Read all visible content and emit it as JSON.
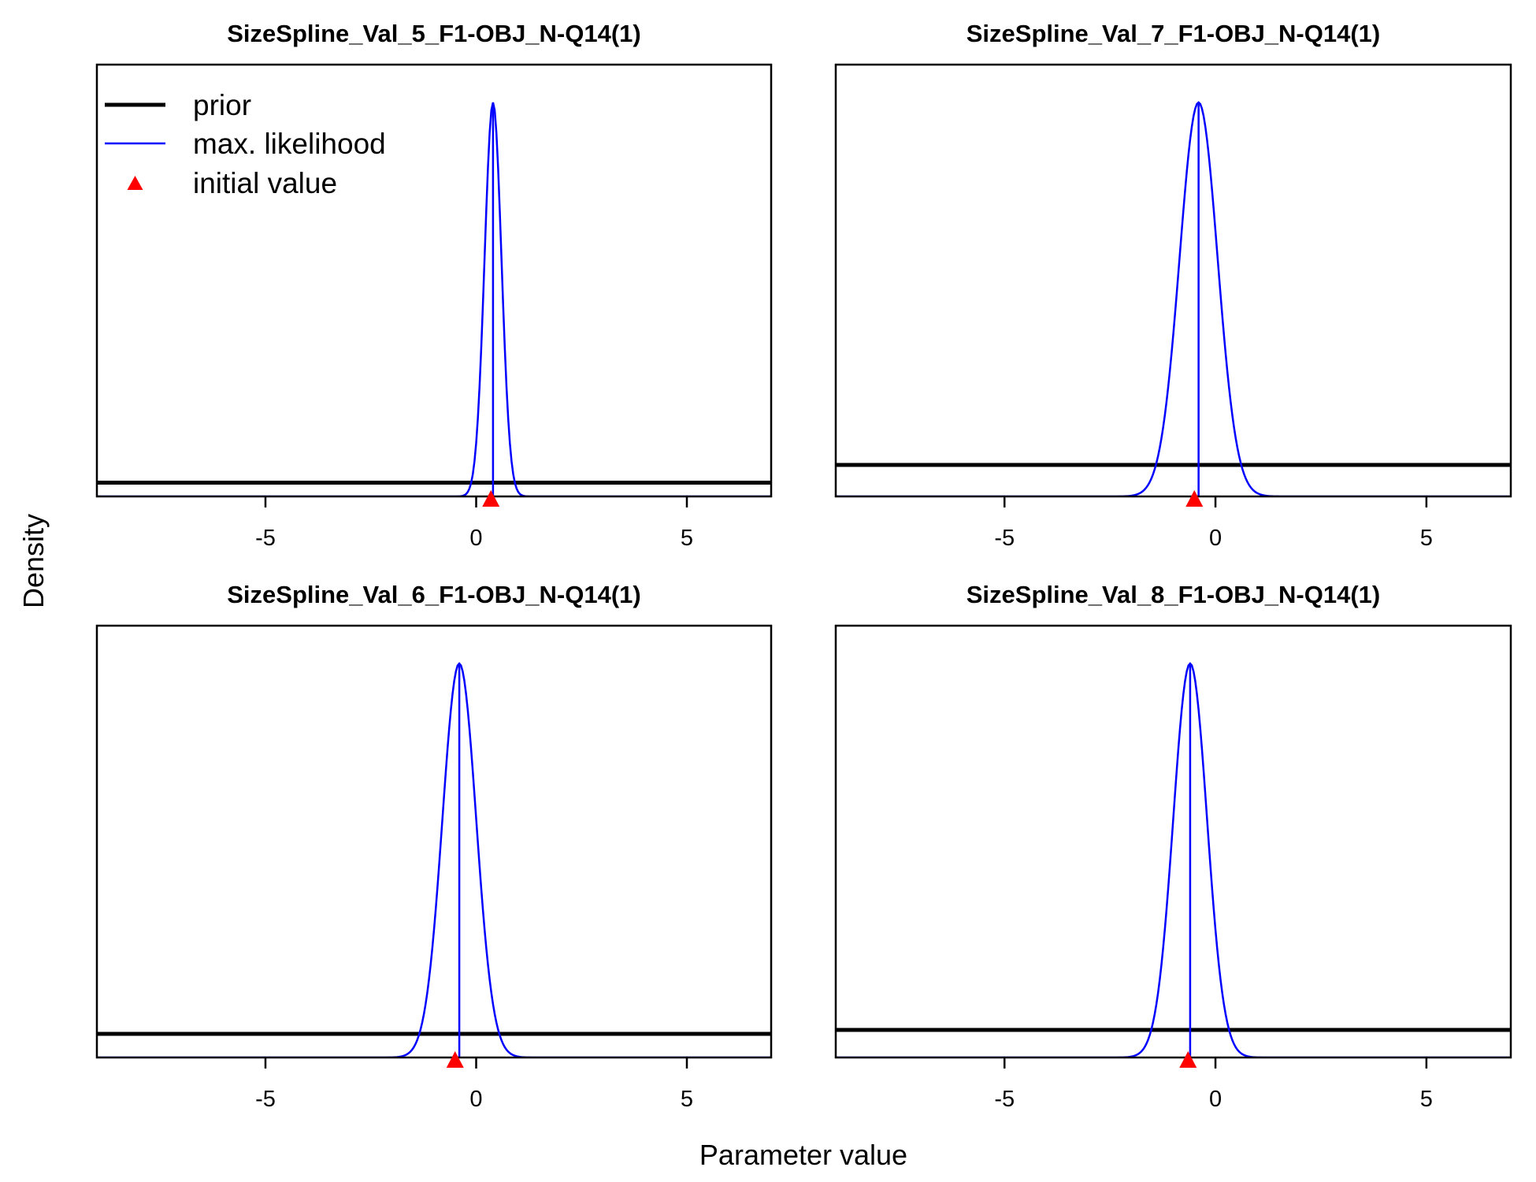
{
  "chart_data": {
    "type": "line",
    "xlabel": "Parameter value",
    "ylabel": "Density",
    "xlim": [
      -9,
      7
    ],
    "x_ticks": [
      -5,
      0,
      5
    ],
    "x_tick_labels": [
      "-5",
      "0",
      "5"
    ],
    "legend": {
      "placement": "top-left",
      "entries": [
        {
          "label": "prior",
          "color": "#000000",
          "style": "thick-line"
        },
        {
          "label": "max. likelihood",
          "color": "#0000ff",
          "style": "thin-line"
        },
        {
          "label": "initial value",
          "color": "#ff0000",
          "style": "triangle"
        }
      ]
    },
    "panels": [
      {
        "title": "SizeSpline_Val_5_F1-OBJ_N-Q14(1)",
        "mle_mean": 0.4,
        "mle_sd": 0.2,
        "prior_level": 0.035,
        "initial_value": 0.35
      },
      {
        "title": "SizeSpline_Val_7_F1-OBJ_N-Q14(1)",
        "mle_mean": -0.4,
        "mle_sd": 0.45,
        "prior_level": 0.08,
        "initial_value": -0.5
      },
      {
        "title": "SizeSpline_Val_6_F1-OBJ_N-Q14(1)",
        "mle_mean": -0.4,
        "mle_sd": 0.4,
        "prior_level": 0.06,
        "initial_value": -0.5
      },
      {
        "title": "SizeSpline_Val_8_F1-OBJ_N-Q14(1)",
        "mle_mean": -0.6,
        "mle_sd": 0.4,
        "prior_level": 0.07,
        "initial_value": -0.65
      }
    ]
  },
  "colors": {
    "prior": "#000000",
    "mle": "#0000ff",
    "initial": "#ff0000"
  }
}
